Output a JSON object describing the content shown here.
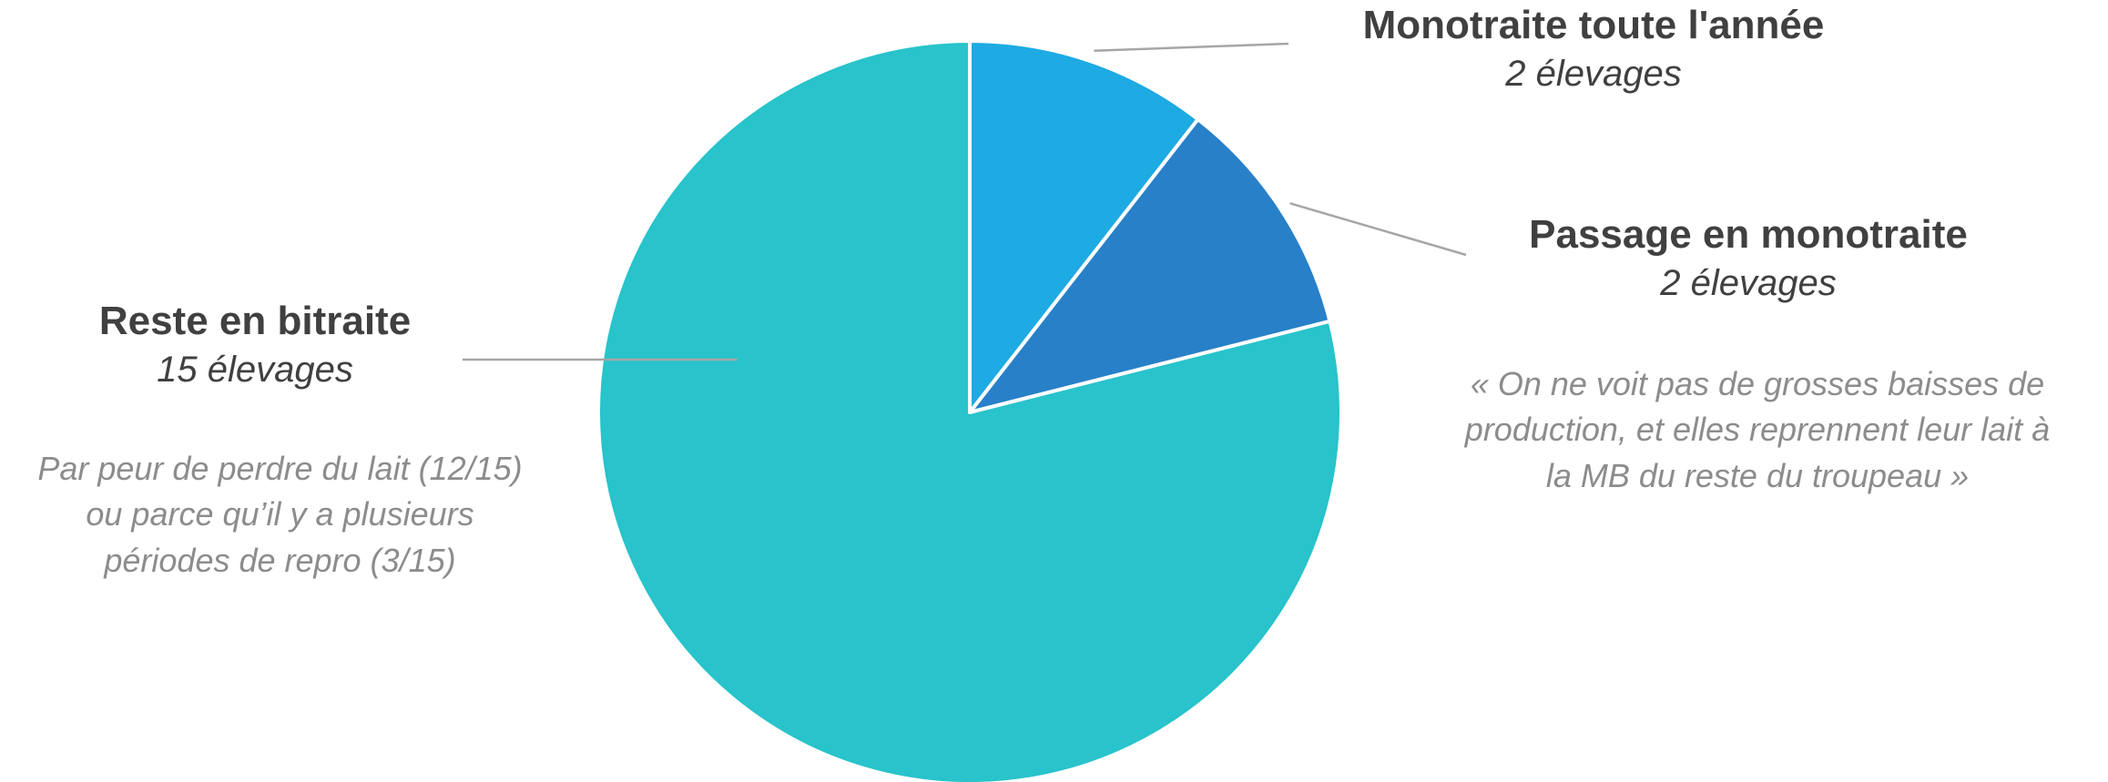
{
  "chart_data": {
    "type": "pie",
    "start_angle": "12 o'clock, clockwise",
    "slices": [
      {
        "label": "Monotraite toute l'année",
        "value": 2,
        "value_label": "2 élevages",
        "color": "#1EAAE2"
      },
      {
        "label": "Passage en monotraite",
        "value": 2,
        "value_label": "2 élevages",
        "color": "#2880C8",
        "note": [
          "« On ne voit pas de grosses baisses de",
          "production, et elles reprennent leur lait à",
          "la MB du reste du troupeau »"
        ]
      },
      {
        "label": "Reste en bitraite",
        "value": 15,
        "value_label": "15 élevages",
        "color": "#28C3CB",
        "note": [
          "Par peur de perdre du lait (12/15)",
          "ou parce qu’il y a plusieurs",
          "périodes de repro (3/15)"
        ]
      }
    ],
    "leader_line_color": "#A6A6A6",
    "slice_border_color": "#FFFFFF"
  }
}
